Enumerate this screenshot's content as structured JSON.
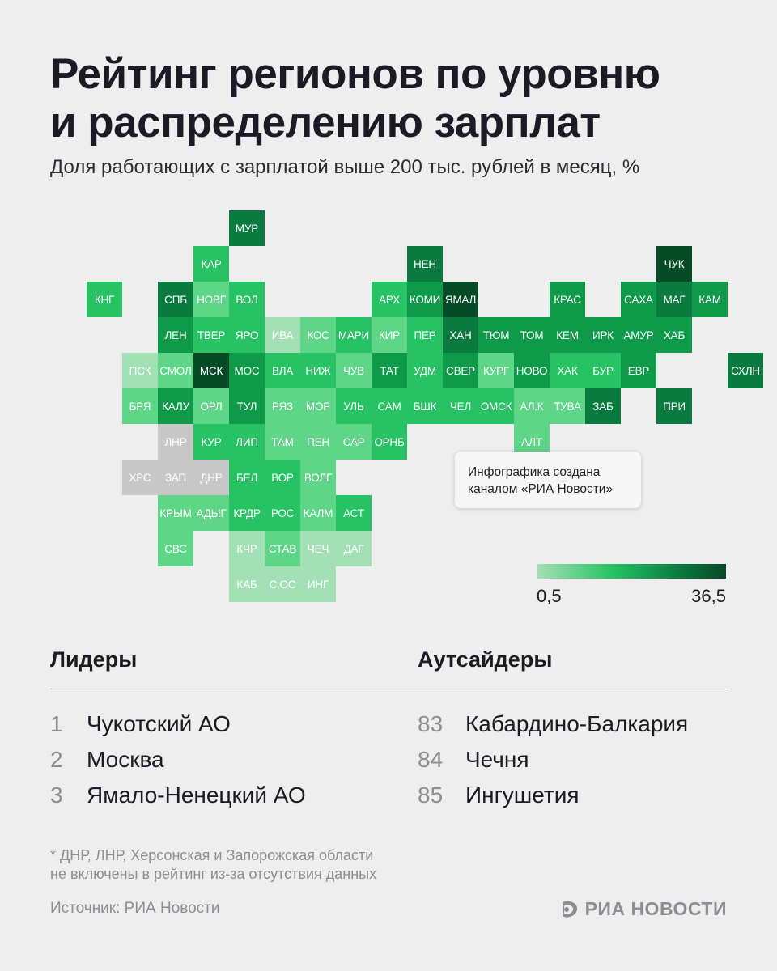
{
  "header": {
    "title_line1": "Рейтинг регионов по уровню",
    "title_line2": "и распределению зарплат",
    "subtitle": "Доля работающих с зарплатой выше 200 тыс. рублей в месяц, %"
  },
  "map": {
    "colors": {
      "nodata": "#c8c8c8",
      "lightest": "#a3e0b5",
      "light": "#5fd588",
      "medium": "#27c263",
      "dark": "#0f9a4a",
      "darker": "#0a7a3e",
      "darkest": "#064a26"
    },
    "regions": [
      {
        "label": "МУР",
        "row": 0,
        "col": 5,
        "shade": "darker"
      },
      {
        "label": "КАР",
        "row": 1,
        "col": 4,
        "shade": "medium"
      },
      {
        "label": "НЕН",
        "row": 1,
        "col": 10,
        "shade": "darker"
      },
      {
        "label": "ЧУК",
        "row": 1,
        "col": 17,
        "shade": "darkest"
      },
      {
        "label": "КНГ",
        "row": 2,
        "col": 1,
        "shade": "medium"
      },
      {
        "label": "СПБ",
        "row": 2,
        "col": 3,
        "shade": "darker"
      },
      {
        "label": "НОВГ",
        "row": 2,
        "col": 4,
        "shade": "light"
      },
      {
        "label": "ВОЛ",
        "row": 2,
        "col": 5,
        "shade": "medium"
      },
      {
        "label": "АРХ",
        "row": 2,
        "col": 9,
        "shade": "medium"
      },
      {
        "label": "КОМИ",
        "row": 2,
        "col": 10,
        "shade": "dark"
      },
      {
        "label": "ЯМАЛ",
        "row": 2,
        "col": 11,
        "shade": "darkest"
      },
      {
        "label": "КРАС",
        "row": 2,
        "col": 14,
        "shade": "dark"
      },
      {
        "label": "САХА",
        "row": 2,
        "col": 16,
        "shade": "dark"
      },
      {
        "label": "МАГ",
        "row": 2,
        "col": 17,
        "shade": "darker"
      },
      {
        "label": "КАМ",
        "row": 2,
        "col": 18,
        "shade": "dark"
      },
      {
        "label": "ЛЕН",
        "row": 3,
        "col": 3,
        "shade": "dark"
      },
      {
        "label": "ТВЕР",
        "row": 3,
        "col": 4,
        "shade": "medium"
      },
      {
        "label": "ЯРО",
        "row": 3,
        "col": 5,
        "shade": "medium"
      },
      {
        "label": "ИВА",
        "row": 3,
        "col": 6,
        "shade": "lightest"
      },
      {
        "label": "КОС",
        "row": 3,
        "col": 7,
        "shade": "light"
      },
      {
        "label": "МАРИ",
        "row": 3,
        "col": 8,
        "shade": "medium"
      },
      {
        "label": "КИР",
        "row": 3,
        "col": 9,
        "shade": "light"
      },
      {
        "label": "ПЕР",
        "row": 3,
        "col": 10,
        "shade": "medium"
      },
      {
        "label": "ХАН",
        "row": 3,
        "col": 11,
        "shade": "darker"
      },
      {
        "label": "ТЮМ",
        "row": 3,
        "col": 12,
        "shade": "dark"
      },
      {
        "label": "ТОМ",
        "row": 3,
        "col": 13,
        "shade": "dark"
      },
      {
        "label": "КЕМ",
        "row": 3,
        "col": 14,
        "shade": "dark"
      },
      {
        "label": "ИРК",
        "row": 3,
        "col": 15,
        "shade": "dark"
      },
      {
        "label": "АМУР",
        "row": 3,
        "col": 16,
        "shade": "dark"
      },
      {
        "label": "ХАБ",
        "row": 3,
        "col": 17,
        "shade": "dark"
      },
      {
        "label": "ПСК",
        "row": 4,
        "col": 2,
        "shade": "lightest"
      },
      {
        "label": "СМОЛ",
        "row": 4,
        "col": 3,
        "shade": "light"
      },
      {
        "label": "МСК",
        "row": 4,
        "col": 4,
        "shade": "darkest"
      },
      {
        "label": "МОС",
        "row": 4,
        "col": 5,
        "shade": "dark"
      },
      {
        "label": "ВЛА",
        "row": 4,
        "col": 6,
        "shade": "medium"
      },
      {
        "label": "НИЖ",
        "row": 4,
        "col": 7,
        "shade": "medium"
      },
      {
        "label": "ЧУВ",
        "row": 4,
        "col": 8,
        "shade": "light"
      },
      {
        "label": "ТАТ",
        "row": 4,
        "col": 9,
        "shade": "dark"
      },
      {
        "label": "УДМ",
        "row": 4,
        "col": 10,
        "shade": "medium"
      },
      {
        "label": "СВЕР",
        "row": 4,
        "col": 11,
        "shade": "dark"
      },
      {
        "label": "КУРГ",
        "row": 4,
        "col": 12,
        "shade": "light"
      },
      {
        "label": "НОВО",
        "row": 4,
        "col": 13,
        "shade": "dark"
      },
      {
        "label": "ХАК",
        "row": 4,
        "col": 14,
        "shade": "medium"
      },
      {
        "label": "БУР",
        "row": 4,
        "col": 15,
        "shade": "medium"
      },
      {
        "label": "ЕВР",
        "row": 4,
        "col": 16,
        "shade": "dark"
      },
      {
        "label": "СХЛН",
        "row": 4,
        "col": 19,
        "shade": "darker"
      },
      {
        "label": "БРЯ",
        "row": 5,
        "col": 2,
        "shade": "light"
      },
      {
        "label": "КАЛУ",
        "row": 5,
        "col": 3,
        "shade": "dark"
      },
      {
        "label": "ОРЛ",
        "row": 5,
        "col": 4,
        "shade": "light"
      },
      {
        "label": "ТУЛ",
        "row": 5,
        "col": 5,
        "shade": "dark"
      },
      {
        "label": "РЯЗ",
        "row": 5,
        "col": 6,
        "shade": "light"
      },
      {
        "label": "МОР",
        "row": 5,
        "col": 7,
        "shade": "light"
      },
      {
        "label": "УЛЬ",
        "row": 5,
        "col": 8,
        "shade": "medium"
      },
      {
        "label": "САМ",
        "row": 5,
        "col": 9,
        "shade": "medium"
      },
      {
        "label": "БШК",
        "row": 5,
        "col": 10,
        "shade": "medium"
      },
      {
        "label": "ЧЕЛ",
        "row": 5,
        "col": 11,
        "shade": "medium"
      },
      {
        "label": "ОМСК",
        "row": 5,
        "col": 12,
        "shade": "medium"
      },
      {
        "label": "АЛ.К",
        "row": 5,
        "col": 13,
        "shade": "light"
      },
      {
        "label": "ТУВА",
        "row": 5,
        "col": 14,
        "shade": "light"
      },
      {
        "label": "ЗАБ",
        "row": 5,
        "col": 15,
        "shade": "darker"
      },
      {
        "label": "ПРИ",
        "row": 5,
        "col": 17,
        "shade": "darker"
      },
      {
        "label": "ЛНР",
        "row": 6,
        "col": 3,
        "shade": "nodata"
      },
      {
        "label": "КУР",
        "row": 6,
        "col": 4,
        "shade": "medium"
      },
      {
        "label": "ЛИП",
        "row": 6,
        "col": 5,
        "shade": "medium"
      },
      {
        "label": "ТАМ",
        "row": 6,
        "col": 6,
        "shade": "light"
      },
      {
        "label": "ПЕН",
        "row": 6,
        "col": 7,
        "shade": "light"
      },
      {
        "label": "САР",
        "row": 6,
        "col": 8,
        "shade": "light"
      },
      {
        "label": "ОРНБ",
        "row": 6,
        "col": 9,
        "shade": "medium"
      },
      {
        "label": "АЛТ",
        "row": 6,
        "col": 13,
        "shade": "light"
      },
      {
        "label": "ХРС",
        "row": 7,
        "col": 2,
        "shade": "nodata"
      },
      {
        "label": "ЗАП",
        "row": 7,
        "col": 3,
        "shade": "nodata"
      },
      {
        "label": "ДНР",
        "row": 7,
        "col": 4,
        "shade": "nodata"
      },
      {
        "label": "БЕЛ",
        "row": 7,
        "col": 5,
        "shade": "medium"
      },
      {
        "label": "ВОР",
        "row": 7,
        "col": 6,
        "shade": "medium"
      },
      {
        "label": "ВОЛГ",
        "row": 7,
        "col": 7,
        "shade": "light"
      },
      {
        "label": "КРЫМ",
        "row": 8,
        "col": 3,
        "shade": "light"
      },
      {
        "label": "АДЫГ",
        "row": 8,
        "col": 4,
        "shade": "light"
      },
      {
        "label": "КРДР",
        "row": 8,
        "col": 5,
        "shade": "medium"
      },
      {
        "label": "РОС",
        "row": 8,
        "col": 6,
        "shade": "medium"
      },
      {
        "label": "КАЛМ",
        "row": 8,
        "col": 7,
        "shade": "light"
      },
      {
        "label": "АСТ",
        "row": 8,
        "col": 8,
        "shade": "medium"
      },
      {
        "label": "СВС",
        "row": 9,
        "col": 3,
        "shade": "light"
      },
      {
        "label": "КЧР",
        "row": 9,
        "col": 5,
        "shade": "lightest"
      },
      {
        "label": "СТАВ",
        "row": 9,
        "col": 6,
        "shade": "light"
      },
      {
        "label": "ЧЕЧ",
        "row": 9,
        "col": 7,
        "shade": "lightest"
      },
      {
        "label": "ДАГ",
        "row": 9,
        "col": 8,
        "shade": "lightest"
      },
      {
        "label": "КАБ",
        "row": 10,
        "col": 5,
        "shade": "lightest"
      },
      {
        "label": "С.ОС",
        "row": 10,
        "col": 6,
        "shade": "lightest"
      },
      {
        "label": "ИНГ",
        "row": 10,
        "col": 7,
        "shade": "lightest"
      }
    ]
  },
  "tooltip": {
    "line1": "Инфографика создана",
    "line2": "каналом «РИА Новости»"
  },
  "legend": {
    "min": "0,5",
    "max": "36,5"
  },
  "leaders": {
    "title": "Лидеры",
    "items": [
      {
        "rank": "1",
        "name": "Чукотский АО"
      },
      {
        "rank": "2",
        "name": "Москва"
      },
      {
        "rank": "3",
        "name": "Ямало-Ненецкий АО"
      }
    ]
  },
  "outsiders": {
    "title": "Аутсайдеры",
    "items": [
      {
        "rank": "83",
        "name": "Кабардино-Балкария"
      },
      {
        "rank": "84",
        "name": "Чечня"
      },
      {
        "rank": "85",
        "name": "Ингушетия"
      }
    ]
  },
  "footer": {
    "footnote_line1": "* ДНР, ЛНР, Херсонская и Запорожская области",
    "footnote_line2": "не включены в рейтинг из-за отсутствия данных",
    "source": "Источник: РИА Новости",
    "brand": "РИА НОВОСТИ"
  }
}
